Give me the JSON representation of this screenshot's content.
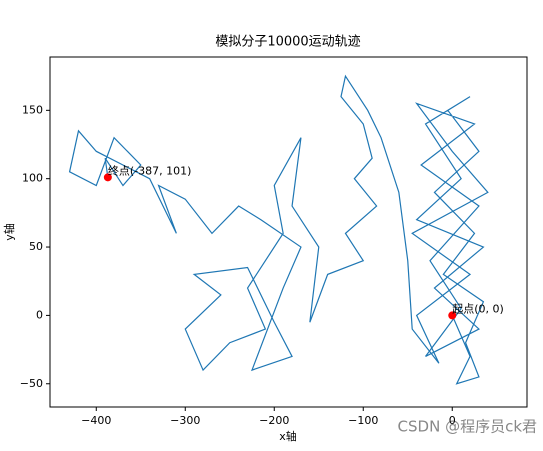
{
  "chart_data": {
    "type": "line",
    "title": "模拟分子10000运动轨迹",
    "x_label": "x轴",
    "y_label": "y轴",
    "series": [
      {
        "color": "#1f77b4",
        "x": [
          0,
          20,
          5,
          30,
          15,
          35,
          -10,
          25,
          -20,
          30,
          -5,
          20,
          -30,
          10,
          -40,
          35,
          -20,
          30,
          -30,
          10,
          -25,
          30,
          -35,
          25,
          -40,
          0,
          40,
          -45,
          20,
          -40,
          -15,
          -45,
          -50,
          -60,
          -80,
          -95,
          -110,
          -120,
          -125,
          -100,
          -90,
          -110,
          -85,
          -120,
          -100,
          -140,
          -160,
          -150,
          -180,
          -170,
          -200,
          -190,
          -230,
          -210,
          -250,
          -280,
          -300,
          -260,
          -290,
          -230,
          -200,
          -180,
          -225,
          -190,
          -170,
          -215,
          -240,
          -270,
          -300,
          -330,
          -310,
          -340,
          -370,
          -400,
          -420,
          -430,
          -400,
          -380,
          -350,
          -370,
          -390,
          -387
        ],
        "y": [
          0,
          -30,
          -50,
          -45,
          -20,
          10,
          30,
          60,
          90,
          120,
          150,
          160,
          140,
          100,
          70,
          50,
          20,
          -10,
          -30,
          5,
          40,
          80,
          110,
          140,
          155,
          120,
          90,
          60,
          30,
          0,
          -35,
          -10,
          40,
          90,
          130,
          150,
          165,
          175,
          160,
          140,
          115,
          100,
          80,
          60,
          40,
          30,
          -5,
          50,
          80,
          130,
          95,
          60,
          20,
          -10,
          -20,
          -40,
          -10,
          15,
          30,
          35,
          -5,
          -30,
          -40,
          20,
          50,
          70,
          80,
          60,
          85,
          95,
          60,
          100,
          110,
          120,
          135,
          105,
          95,
          130,
          110,
          95,
          115,
          101
        ]
      }
    ],
    "annotations": [
      {
        "text": "起点(0, 0)",
        "x": 0,
        "y": 0,
        "color": "red"
      },
      {
        "text": "终点(-387, 101)",
        "x": -387,
        "y": 101,
        "color": "red"
      }
    ],
    "xlim": [
      -452,
      84
    ],
    "ylim": [
      -67,
      189
    ],
    "xticks": [
      {
        "value": -400,
        "label": "−400"
      },
      {
        "value": -300,
        "label": "−300"
      },
      {
        "value": -200,
        "label": "−200"
      },
      {
        "value": -100,
        "label": "−100"
      },
      0
    ],
    "yticks": [
      {
        "value": -50,
        "label": "−50"
      },
      0,
      50,
      100,
      150
    ],
    "watermark": "CSDN @程序员ck君"
  }
}
